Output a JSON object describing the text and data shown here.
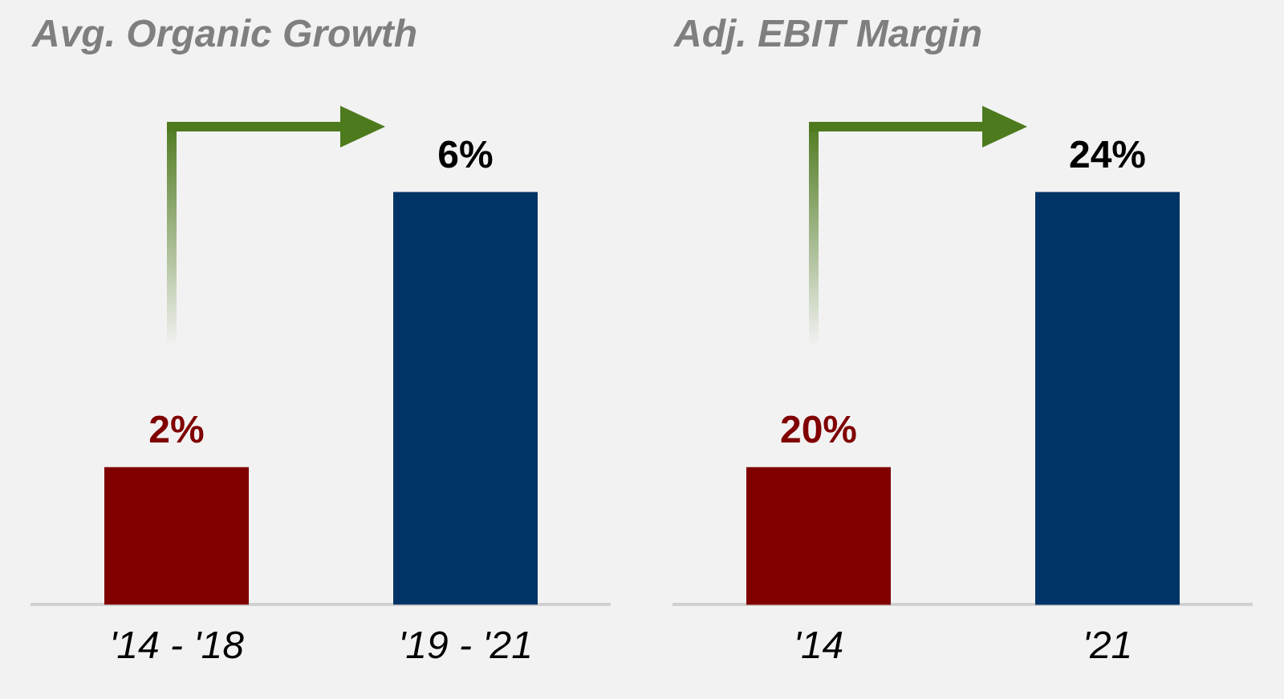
{
  "chart_data": [
    {
      "type": "bar",
      "title": "Avg. Organic Growth",
      "categories": [
        "'14 - '18",
        "'19 - '21"
      ],
      "values": [
        2,
        6
      ],
      "colors": [
        "#800000",
        "#003366"
      ],
      "value_labels": [
        "2%",
        "6%"
      ],
      "ylim": [
        0,
        7
      ],
      "tick_labels": "x",
      "grid": false,
      "legend": false
    },
    {
      "type": "bar",
      "title": "Adj. EBIT Margin",
      "categories": [
        "'14",
        "'21"
      ],
      "values": [
        20,
        24
      ],
      "colors": [
        "#800000",
        "#003366"
      ],
      "value_labels": [
        "20%",
        "24%"
      ],
      "ylim": [
        18,
        25
      ],
      "tick_labels": "x",
      "grid": false,
      "legend": false
    }
  ]
}
